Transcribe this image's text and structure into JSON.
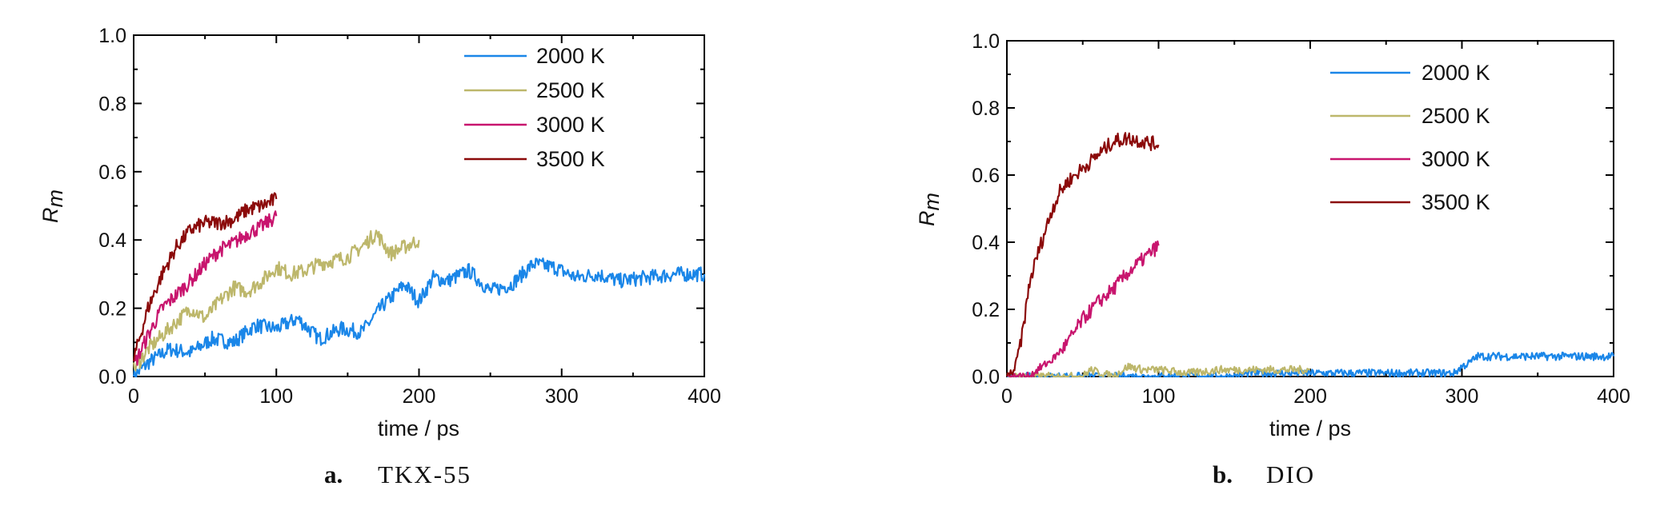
{
  "colors": {
    "2000 K": "#1a86e8",
    "2500 K": "#bdb76b",
    "3000 K": "#c8156e",
    "3500 K": "#8b0a0a",
    "axis": "#000000"
  },
  "chart_data": [
    {
      "type": "line",
      "caption_letter": "a.",
      "caption_text": "TKX-55",
      "xlabel": "time / ps",
      "ylabel_main": "R",
      "ylabel_sub": "m",
      "xlim": [
        0,
        400
      ],
      "ylim": [
        0.0,
        1.0
      ],
      "xticks": [
        0,
        100,
        200,
        300,
        400
      ],
      "yticks": [
        "0.0",
        "0.2",
        "0.4",
        "0.6",
        "0.8",
        "1.0"
      ],
      "legend_position": "top-right",
      "grid": false,
      "series": [
        {
          "name": "2000 K",
          "x": [
            0,
            10,
            25,
            40,
            55,
            70,
            85,
            100,
            115,
            130,
            145,
            160,
            175,
            190,
            200,
            210,
            220,
            235,
            250,
            265,
            280,
            295,
            310,
            325,
            340,
            360,
            380,
            400
          ],
          "y": [
            0.0,
            0.04,
            0.08,
            0.07,
            0.11,
            0.1,
            0.15,
            0.14,
            0.17,
            0.11,
            0.14,
            0.13,
            0.21,
            0.27,
            0.22,
            0.29,
            0.28,
            0.31,
            0.25,
            0.27,
            0.33,
            0.32,
            0.29,
            0.3,
            0.28,
            0.29,
            0.3,
            0.3
          ]
        },
        {
          "name": "2500 K",
          "x": [
            0,
            10,
            20,
            30,
            40,
            50,
            60,
            70,
            80,
            90,
            100,
            110,
            120,
            130,
            140,
            150,
            160,
            170,
            180,
            190,
            200
          ],
          "y": [
            0.02,
            0.08,
            0.12,
            0.16,
            0.2,
            0.17,
            0.22,
            0.26,
            0.25,
            0.28,
            0.32,
            0.3,
            0.31,
            0.33,
            0.34,
            0.35,
            0.38,
            0.42,
            0.36,
            0.38,
            0.4
          ]
        },
        {
          "name": "3000 K",
          "x": [
            0,
            10,
            20,
            30,
            40,
            50,
            60,
            70,
            80,
            90,
            100
          ],
          "y": [
            0.03,
            0.12,
            0.2,
            0.24,
            0.28,
            0.33,
            0.37,
            0.39,
            0.42,
            0.44,
            0.47
          ]
        },
        {
          "name": "3500 K",
          "x": [
            0,
            10,
            20,
            30,
            40,
            50,
            60,
            70,
            80,
            90,
            100
          ],
          "y": [
            0.05,
            0.2,
            0.3,
            0.38,
            0.43,
            0.45,
            0.45,
            0.46,
            0.49,
            0.5,
            0.52
          ]
        }
      ]
    },
    {
      "type": "line",
      "caption_letter": "b.",
      "caption_text": "DIO",
      "xlabel": "time / ps",
      "ylabel_main": "R",
      "ylabel_sub": "m",
      "xlim": [
        0,
        400
      ],
      "ylim": [
        0.0,
        1.0
      ],
      "xticks": [
        0,
        100,
        200,
        300,
        400
      ],
      "yticks": [
        "0.0",
        "0.2",
        "0.4",
        "0.6",
        "0.8",
        "1.0"
      ],
      "legend_position": "top-right",
      "grid": false,
      "series": [
        {
          "name": "2000 K",
          "x": [
            0,
            150,
            160,
            200,
            250,
            295,
            300,
            305,
            310,
            330,
            360,
            400
          ],
          "y": [
            0.0,
            0.0,
            0.01,
            0.01,
            0.01,
            0.01,
            0.03,
            0.04,
            0.06,
            0.06,
            0.06,
            0.06
          ]
        },
        {
          "name": "2500 K",
          "x": [
            0,
            50,
            55,
            70,
            80,
            90,
            100,
            120,
            140,
            160,
            180,
            200
          ],
          "y": [
            0.0,
            0.0,
            0.02,
            0.0,
            0.03,
            0.02,
            0.02,
            0.01,
            0.02,
            0.02,
            0.02,
            0.02
          ]
        },
        {
          "name": "3000 K",
          "x": [
            0,
            10,
            15,
            20,
            30,
            40,
            50,
            60,
            70,
            80,
            90,
            100
          ],
          "y": [
            0.0,
            0.0,
            0.0,
            0.02,
            0.05,
            0.1,
            0.17,
            0.22,
            0.26,
            0.31,
            0.35,
            0.39
          ]
        },
        {
          "name": "3500 K",
          "x": [
            0,
            5,
            10,
            15,
            20,
            25,
            30,
            35,
            40,
            50,
            60,
            70,
            80,
            90,
            100
          ],
          "y": [
            0.0,
            0.02,
            0.12,
            0.28,
            0.36,
            0.43,
            0.5,
            0.55,
            0.58,
            0.62,
            0.66,
            0.7,
            0.71,
            0.7,
            0.69
          ]
        }
      ]
    }
  ]
}
